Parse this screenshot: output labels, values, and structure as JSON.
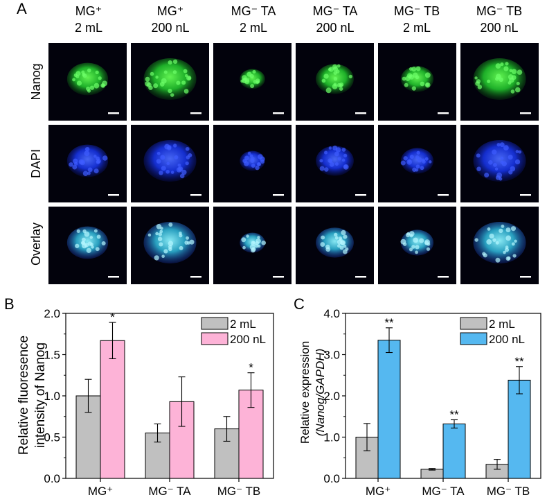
{
  "panel_a": {
    "letter": "A",
    "columns": [
      {
        "line1": "MG⁺",
        "line2": "2 mL"
      },
      {
        "line1": "MG⁺",
        "line2": "200 nL"
      },
      {
        "line1": "MG⁻ TA",
        "line2": "2 mL"
      },
      {
        "line1": "MG⁻ TA",
        "line2": "200 nL"
      },
      {
        "line1": "MG⁻ TB",
        "line2": "2 mL"
      },
      {
        "line1": "MG⁻ TB",
        "line2": "200 nL"
      }
    ],
    "rows": [
      {
        "label": "Nanog",
        "color": "#22b022"
      },
      {
        "label": "DAPI",
        "color": "#2222dd"
      },
      {
        "label": "Overlay",
        "color": "#22ccee"
      }
    ],
    "colony_sizes": [
      0.78,
      1.0,
      0.48,
      0.72,
      0.62,
      1.0
    ]
  },
  "chart_data": [
    {
      "panel": "B",
      "type": "bar",
      "ylabel_line1": "Relative fluoresence",
      "ylabel_line2": "intensity of Nanog",
      "categories": [
        "MG⁺",
        "MG⁻ TA",
        "MG⁻ TB"
      ],
      "ylim": [
        0,
        2.0
      ],
      "yticks": [
        "0.0",
        "0.5",
        "1.0",
        "1.5",
        "2.0"
      ],
      "legend_position": "top-right",
      "series": [
        {
          "name": "2 mL",
          "color": "#c0c0c0",
          "values": [
            1.0,
            0.55,
            0.6
          ],
          "errors": [
            0.2,
            0.11,
            0.15
          ],
          "stars": [
            "",
            "",
            ""
          ]
        },
        {
          "name": "200 nL",
          "color": "#fdb3d7",
          "values": [
            1.67,
            0.93,
            1.07
          ],
          "errors": [
            0.22,
            0.3,
            0.21
          ],
          "stars": [
            "*",
            "",
            "*"
          ]
        }
      ]
    },
    {
      "panel": "C",
      "type": "bar",
      "ylabel_line1": "Relative expression",
      "ylabel_line2": "(Nanog/GAPDH)",
      "categories": [
        "MG⁺",
        "MG⁻ TA",
        "MG⁻ TB"
      ],
      "ylim": [
        0,
        4.0
      ],
      "yticks": [
        "0.0",
        "1.0",
        "2.0",
        "3.0",
        "4.0"
      ],
      "legend_position": "top-right",
      "series": [
        {
          "name": "2 mL",
          "color": "#c0c0c0",
          "values": [
            1.0,
            0.22,
            0.34
          ],
          "errors": [
            0.33,
            0.02,
            0.12
          ],
          "stars": [
            "",
            "",
            ""
          ]
        },
        {
          "name": "200 nL",
          "color": "#55b8f0",
          "values": [
            3.35,
            1.32,
            2.38
          ],
          "errors": [
            0.3,
            0.1,
            0.33
          ],
          "stars": [
            "**",
            "**",
            "**"
          ]
        }
      ]
    }
  ]
}
